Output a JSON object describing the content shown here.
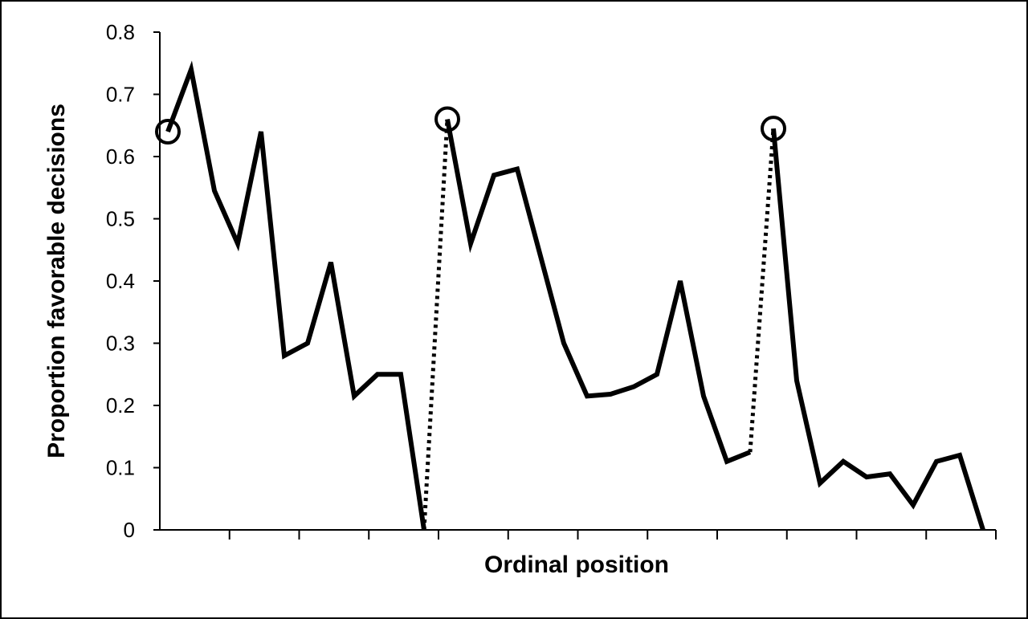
{
  "chart_data": {
    "type": "line",
    "title": "",
    "xlabel": "Ordinal position",
    "ylabel": "Proportion favorable decisions",
    "ylim": [
      0,
      0.8
    ],
    "yticks": [
      "0",
      "0.1",
      "0.2",
      "0.3",
      "0.4",
      "0.5",
      "0.6",
      "0.7",
      "0.8"
    ],
    "x_tick_count": 12,
    "grid": false,
    "legend": "none",
    "line_color": "#000000",
    "segments": [
      {
        "x": [
          1,
          2,
          3,
          4,
          5,
          6,
          7,
          8,
          9,
          10,
          11,
          12
        ],
        "y": [
          0.64,
          0.74,
          0.545,
          0.46,
          0.64,
          0.28,
          0.3,
          0.43,
          0.215,
          0.25,
          0.25,
          0.0
        ],
        "style": "solid"
      },
      {
        "x": [
          13,
          14,
          15,
          16,
          17,
          18,
          19,
          20,
          21,
          22,
          23,
          24,
          25,
          26
        ],
        "y": [
          0.66,
          0.46,
          0.57,
          0.58,
          0.44,
          0.3,
          0.215,
          0.218,
          0.23,
          0.25,
          0.4,
          0.215,
          0.11,
          0.125
        ],
        "style": "solid"
      },
      {
        "x": [
          27,
          28,
          29,
          30,
          31,
          32,
          33,
          34,
          35,
          36
        ],
        "y": [
          0.645,
          0.24,
          0.075,
          0.11,
          0.085,
          0.09,
          0.04,
          0.11,
          0.12,
          0.0
        ],
        "style": "solid"
      }
    ],
    "dotted_connectors": [
      {
        "from": [
          12,
          0.0
        ],
        "to": [
          13,
          0.66
        ]
      },
      {
        "from": [
          26,
          0.125
        ],
        "to": [
          27,
          0.645
        ]
      }
    ],
    "circled_points": [
      {
        "x": 1,
        "y": 0.64
      },
      {
        "x": 13,
        "y": 0.66
      },
      {
        "x": 27,
        "y": 0.645
      }
    ]
  }
}
